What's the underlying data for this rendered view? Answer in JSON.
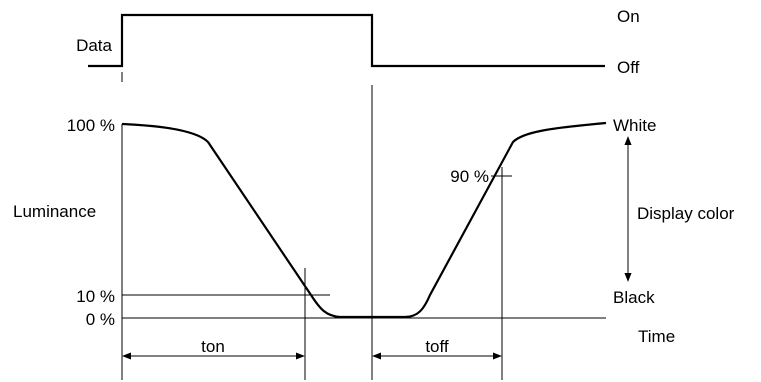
{
  "signal": {
    "label": "Data",
    "on_label": "On",
    "off_label": "Off"
  },
  "luminance": {
    "axis_label": "Luminance",
    "level_100": "100 %",
    "level_90": "90 %",
    "level_10": "10 %",
    "level_0": "0 %",
    "time_label": "Time"
  },
  "display": {
    "white_label": "White",
    "black_label": "Black",
    "range_label": "Display color"
  },
  "timing": {
    "ton_label": "ton",
    "toff_label": "toff"
  },
  "colors": {
    "line": "#000000",
    "background": "#ffffff"
  }
}
